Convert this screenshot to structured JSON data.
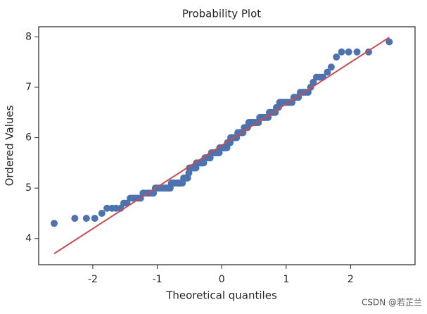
{
  "chart_data": {
    "type": "scatter",
    "title": "Probability Plot",
    "xlabel": "Theoretical quantiles",
    "ylabel": "Ordered Values",
    "xlim": [
      -2.84,
      3.0
    ],
    "ylim": [
      3.48,
      8.2
    ],
    "xticks": [
      -2,
      -1,
      0,
      1,
      2
    ],
    "yticks": [
      4,
      5,
      6,
      7,
      8
    ],
    "series": [
      {
        "type": "scatter",
        "color": "#4c72b0",
        "x": [
          -2.6,
          -2.28,
          -2.1,
          -1.97,
          -1.86,
          -1.78,
          -1.7,
          -1.64,
          -1.57,
          -1.52,
          -1.47,
          -1.42,
          -1.38,
          -1.34,
          -1.3,
          -1.26,
          -1.22,
          -1.19,
          -1.15,
          -1.12,
          -1.09,
          -1.06,
          -1.03,
          -1.01,
          -0.98,
          -0.95,
          -0.93,
          -0.9,
          -0.88,
          -0.85,
          -0.83,
          -0.8,
          -0.78,
          -0.76,
          -0.74,
          -0.72,
          -0.69,
          -0.67,
          -0.65,
          -0.63,
          -0.61,
          -0.59,
          -0.57,
          -0.55,
          -0.53,
          -0.51,
          -0.5,
          -0.48,
          -0.46,
          -0.44,
          -0.42,
          -0.4,
          -0.39,
          -0.37,
          -0.35,
          -0.33,
          -0.31,
          -0.3,
          -0.28,
          -0.26,
          -0.25,
          -0.23,
          -0.21,
          -0.19,
          -0.18,
          -0.16,
          -0.14,
          -0.13,
          -0.11,
          -0.09,
          -0.08,
          -0.06,
          -0.04,
          -0.03,
          -0.01,
          0.01,
          0.03,
          0.04,
          0.06,
          0.08,
          0.09,
          0.11,
          0.13,
          0.14,
          0.16,
          0.18,
          0.19,
          0.21,
          0.23,
          0.25,
          0.26,
          0.28,
          0.3,
          0.31,
          0.33,
          0.35,
          0.37,
          0.39,
          0.4,
          0.42,
          0.44,
          0.46,
          0.48,
          0.5,
          0.51,
          0.53,
          0.55,
          0.57,
          0.59,
          0.61,
          0.63,
          0.65,
          0.67,
          0.69,
          0.72,
          0.74,
          0.76,
          0.78,
          0.8,
          0.83,
          0.85,
          0.88,
          0.9,
          0.93,
          0.95,
          0.98,
          1.01,
          1.03,
          1.06,
          1.09,
          1.12,
          1.15,
          1.19,
          1.22,
          1.26,
          1.3,
          1.34,
          1.38,
          1.42,
          1.47,
          1.52,
          1.57,
          1.64,
          1.7,
          1.78,
          1.86,
          1.97,
          2.1,
          2.28,
          2.6
        ],
        "values": [
          4.3,
          4.4,
          4.4,
          4.4,
          4.5,
          4.6,
          4.6,
          4.6,
          4.6,
          4.7,
          4.7,
          4.8,
          4.8,
          4.8,
          4.8,
          4.8,
          4.9,
          4.9,
          4.9,
          4.9,
          4.9,
          4.9,
          5.0,
          5.0,
          5.0,
          5.0,
          5.0,
          5.0,
          5.0,
          5.0,
          5.0,
          5.0,
          5.1,
          5.1,
          5.1,
          5.1,
          5.1,
          5.1,
          5.1,
          5.1,
          5.1,
          5.2,
          5.2,
          5.2,
          5.2,
          5.3,
          5.4,
          5.4,
          5.4,
          5.4,
          5.4,
          5.4,
          5.5,
          5.5,
          5.5,
          5.5,
          5.5,
          5.5,
          5.5,
          5.6,
          5.6,
          5.6,
          5.6,
          5.6,
          5.6,
          5.7,
          5.7,
          5.7,
          5.7,
          5.7,
          5.7,
          5.7,
          5.7,
          5.8,
          5.8,
          5.8,
          5.8,
          5.8,
          5.8,
          5.8,
          5.9,
          5.9,
          5.9,
          6.0,
          6.0,
          6.0,
          6.0,
          6.0,
          6.0,
          6.1,
          6.1,
          6.1,
          6.1,
          6.1,
          6.1,
          6.2,
          6.2,
          6.2,
          6.2,
          6.3,
          6.3,
          6.3,
          6.3,
          6.3,
          6.3,
          6.3,
          6.3,
          6.3,
          6.4,
          6.4,
          6.4,
          6.4,
          6.4,
          6.4,
          6.4,
          6.5,
          6.5,
          6.5,
          6.5,
          6.5,
          6.6,
          6.6,
          6.7,
          6.7,
          6.7,
          6.7,
          6.7,
          6.7,
          6.7,
          6.7,
          6.8,
          6.8,
          6.8,
          6.9,
          6.9,
          6.9,
          6.9,
          7.0,
          7.1,
          7.2,
          7.2,
          7.2,
          7.3,
          7.4,
          7.6,
          7.7,
          7.7,
          7.7,
          7.7,
          7.9
        ]
      },
      {
        "type": "line",
        "color": "#c44e52",
        "x": [
          -2.6,
          2.6
        ],
        "values": [
          3.7,
          7.99
        ]
      }
    ]
  },
  "watermark": "CSDN @若芷兰"
}
